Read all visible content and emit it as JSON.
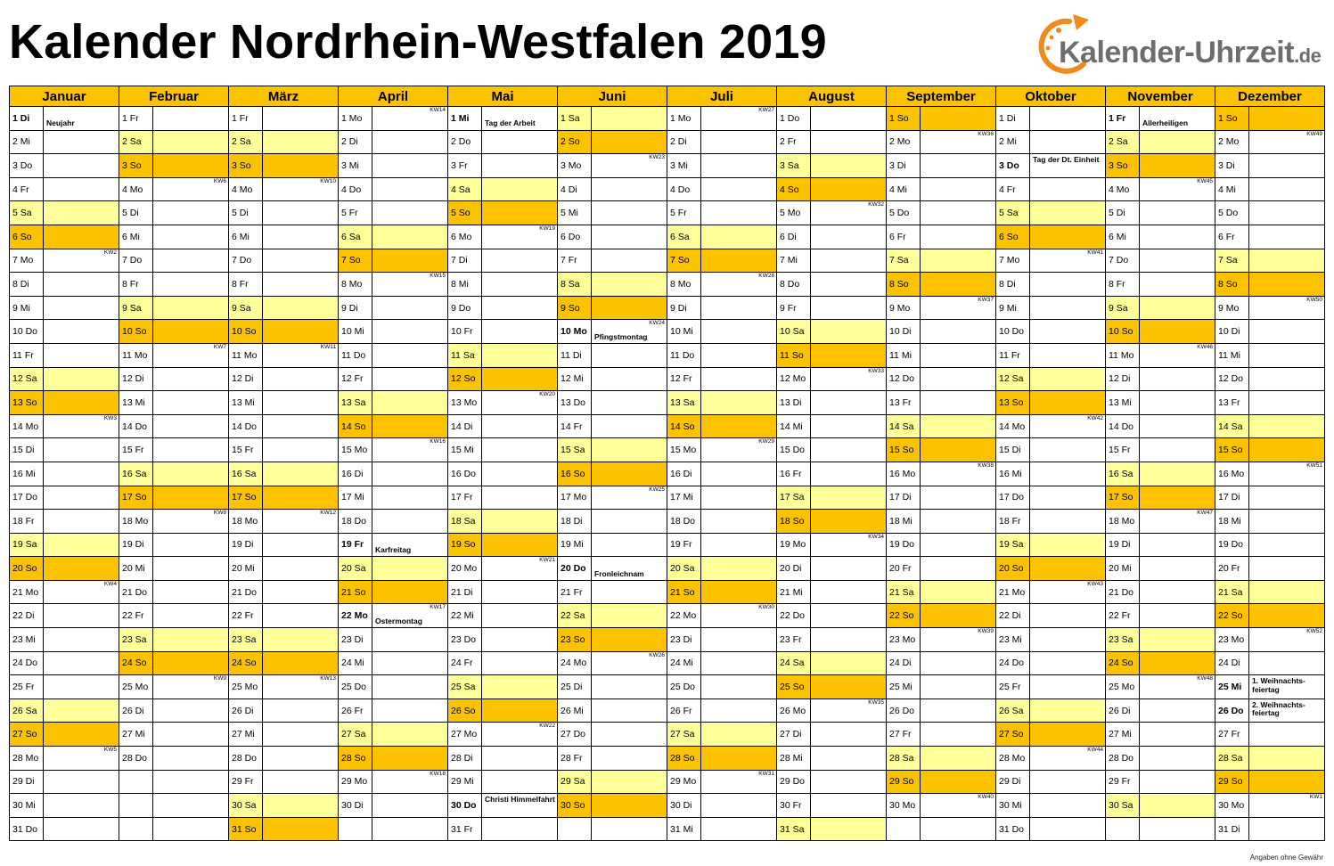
{
  "title": "Kalender Nordrhein-Westfalen 2019",
  "logo": {
    "name": "Kalender-Uhrzeit",
    "tld": ".de",
    "icon": "clock-arrow-icon",
    "accent": "#f08a1c",
    "text_color": "#6d6d6d"
  },
  "footer": "Angaben ohne Gewähr",
  "colors": {
    "header": "#fbc200",
    "saturday": "#ffff99",
    "sunday": "#fbc200"
  },
  "months": [
    {
      "name": "Januar",
      "days": [
        "1 Di",
        "2 Mi",
        "3 Do",
        "4 Fr",
        "5 Sa",
        "6 So",
        "7 Mo",
        "8 Di",
        "9 Mi",
        "10 Do",
        "11 Fr",
        "12 Sa",
        "13 So",
        "14 Mo",
        "15 Di",
        "16 Mi",
        "17 Do",
        "18 Fr",
        "19 Sa",
        "20 So",
        "21 Mo",
        "22 Di",
        "23 Mi",
        "24 Do",
        "25 Fr",
        "26 Sa",
        "27 So",
        "28 Mo",
        "29 Di",
        "30 Mi",
        "31 Do"
      ],
      "kw": {
        "7": "KW2",
        "14": "KW3",
        "21": "KW4",
        "28": "KW5"
      },
      "holidays": {
        "1": "Neujahr"
      }
    },
    {
      "name": "Februar",
      "days": [
        "1 Fr",
        "2 Sa",
        "3 So",
        "4 Mo",
        "5 Di",
        "6 Mi",
        "7 Do",
        "8 Fr",
        "9 Sa",
        "10 So",
        "11 Mo",
        "12 Di",
        "13 Mi",
        "14 Do",
        "15 Fr",
        "16 Sa",
        "17 So",
        "18 Mo",
        "19 Di",
        "20 Mi",
        "21 Do",
        "22 Fr",
        "23 Sa",
        "24 So",
        "25 Mo",
        "26 Di",
        "27 Mi",
        "28 Do"
      ],
      "kw": {
        "4": "KW6",
        "11": "KW7",
        "18": "KW8",
        "25": "KW9"
      },
      "holidays": {}
    },
    {
      "name": "März",
      "days": [
        "1 Fr",
        "2 Sa",
        "3 So",
        "4 Mo",
        "5 Di",
        "6 Mi",
        "7 Do",
        "8 Fr",
        "9 Sa",
        "10 So",
        "11 Mo",
        "12 Di",
        "13 Mi",
        "14 Do",
        "15 Fr",
        "16 Sa",
        "17 So",
        "18 Mo",
        "19 Di",
        "20 Mi",
        "21 Do",
        "22 Fr",
        "23 Sa",
        "24 So",
        "25 Mo",
        "26 Di",
        "27 Mi",
        "28 Do",
        "29 Fr",
        "30 Sa",
        "31 So"
      ],
      "kw": {
        "4": "KW10",
        "11": "KW11",
        "18": "KW12",
        "25": "KW13"
      },
      "holidays": {}
    },
    {
      "name": "April",
      "days": [
        "1 Mo",
        "2 Di",
        "3 Mi",
        "4 Do",
        "5 Fr",
        "6 Sa",
        "7 So",
        "8 Mo",
        "9 Di",
        "10 Mi",
        "11 Do",
        "12 Fr",
        "13 Sa",
        "14 So",
        "15 Mo",
        "16 Di",
        "17 Mi",
        "18 Do",
        "19 Fr",
        "20 Sa",
        "21 So",
        "22 Mo",
        "23 Di",
        "24 Mi",
        "25 Do",
        "26 Fr",
        "27 Sa",
        "28 So",
        "29 Mo",
        "30 Di"
      ],
      "kw": {
        "1": "KW14",
        "8": "KW15",
        "15": "KW16",
        "22": "KW17",
        "29": "KW18"
      },
      "holidays": {
        "19": "Karfreitag",
        "22": "Ostermontag"
      }
    },
    {
      "name": "Mai",
      "days": [
        "1 Mi",
        "2 Do",
        "3 Fr",
        "4 Sa",
        "5 So",
        "6 Mo",
        "7 Di",
        "8 Mi",
        "9 Do",
        "10 Fr",
        "11 Sa",
        "12 So",
        "13 Mo",
        "14 Di",
        "15 Mi",
        "16 Do",
        "17 Fr",
        "18 Sa",
        "19 So",
        "20 Mo",
        "21 Di",
        "22 Mi",
        "23 Do",
        "24 Fr",
        "25 Sa",
        "26 So",
        "27 Mo",
        "28 Di",
        "29 Mi",
        "30 Do",
        "31 Fr"
      ],
      "kw": {
        "6": "KW19",
        "13": "KW20",
        "20": "KW21",
        "27": "KW22"
      },
      "holidays": {
        "1": "Tag der Arbeit",
        "30": "Christi Himmelfahrt"
      }
    },
    {
      "name": "Juni",
      "days": [
        "1 Sa",
        "2 So",
        "3 Mo",
        "4 Di",
        "5 Mi",
        "6 Do",
        "7 Fr",
        "8 Sa",
        "9 So",
        "10 Mo",
        "11 Di",
        "12 Mi",
        "13 Do",
        "14 Fr",
        "15 Sa",
        "16 So",
        "17 Mo",
        "18 Di",
        "19 Mi",
        "20 Do",
        "21 Fr",
        "22 Sa",
        "23 So",
        "24 Mo",
        "25 Di",
        "26 Mi",
        "27 Do",
        "28 Fr",
        "29 Sa",
        "30 So"
      ],
      "kw": {
        "3": "KW23",
        "10": "KW24",
        "17": "KW25",
        "24": "KW26"
      },
      "holidays": {
        "10": "Pfingstmontag",
        "20": "Fronleichnam"
      }
    },
    {
      "name": "Juli",
      "days": [
        "1 Mo",
        "2 Di",
        "3 Mi",
        "4 Do",
        "5 Fr",
        "6 Sa",
        "7 So",
        "8 Mo",
        "9 Di",
        "10 Mi",
        "11 Do",
        "12 Fr",
        "13 Sa",
        "14 So",
        "15 Mo",
        "16 Di",
        "17 Mi",
        "18 Do",
        "19 Fr",
        "20 Sa",
        "21 So",
        "22 Mo",
        "23 Di",
        "24 Mi",
        "25 Do",
        "26 Fr",
        "27 Sa",
        "28 So",
        "29 Mo",
        "30 Di",
        "31 Mi"
      ],
      "kw": {
        "1": "KW27",
        "8": "KW28",
        "15": "KW29",
        "22": "KW30",
        "29": "KW31"
      },
      "holidays": {}
    },
    {
      "name": "August",
      "days": [
        "1 Do",
        "2 Fr",
        "3 Sa",
        "4 So",
        "5 Mo",
        "6 Di",
        "7 Mi",
        "8 Do",
        "9 Fr",
        "10 Sa",
        "11 So",
        "12 Mo",
        "13 Di",
        "14 Mi",
        "15 Do",
        "16 Fr",
        "17 Sa",
        "18 So",
        "19 Mo",
        "20 Di",
        "21 Mi",
        "22 Do",
        "23 Fr",
        "24 Sa",
        "25 So",
        "26 Mo",
        "27 Di",
        "28 Mi",
        "29 Do",
        "30 Fr",
        "31 Sa"
      ],
      "kw": {
        "5": "KW32",
        "12": "KW33",
        "19": "KW34",
        "26": "KW35"
      },
      "holidays": {}
    },
    {
      "name": "September",
      "days": [
        "1 So",
        "2 Mo",
        "3 Di",
        "4 Mi",
        "5 Do",
        "6 Fr",
        "7 Sa",
        "8 So",
        "9 Mo",
        "10 Di",
        "11 Mi",
        "12 Do",
        "13 Fr",
        "14 Sa",
        "15 So",
        "16 Mo",
        "17 Di",
        "18 Mi",
        "19 Do",
        "20 Fr",
        "21 Sa",
        "22 So",
        "23 Mo",
        "24 Di",
        "25 Mi",
        "26 Do",
        "27 Fr",
        "28 Sa",
        "29 So",
        "30 Mo"
      ],
      "kw": {
        "2": "KW36",
        "9": "KW37",
        "16": "KW38",
        "23": "KW39",
        "30": "KW40"
      },
      "holidays": {}
    },
    {
      "name": "Oktober",
      "days": [
        "1 Di",
        "2 Mi",
        "3 Do",
        "4 Fr",
        "5 Sa",
        "6 So",
        "7 Mo",
        "8 Di",
        "9 Mi",
        "10 Do",
        "11 Fr",
        "12 Sa",
        "13 So",
        "14 Mo",
        "15 Di",
        "16 Mi",
        "17 Do",
        "18 Fr",
        "19 Sa",
        "20 So",
        "21 Mo",
        "22 Di",
        "23 Mi",
        "24 Do",
        "25 Fr",
        "26 Sa",
        "27 So",
        "28 Mo",
        "29 Di",
        "30 Mi",
        "31 Do"
      ],
      "kw": {
        "7": "KW41",
        "14": "KW42",
        "21": "KW43",
        "28": "KW44"
      },
      "holidays": {
        "3": "Tag der Dt. Einheit"
      }
    },
    {
      "name": "November",
      "days": [
        "1 Fr",
        "2 Sa",
        "3 So",
        "4 Mo",
        "5 Di",
        "6 Mi",
        "7 Do",
        "8 Fr",
        "9 Sa",
        "10 So",
        "11 Mo",
        "12 Di",
        "13 Mi",
        "14 Do",
        "15 Fr",
        "16 Sa",
        "17 So",
        "18 Mo",
        "19 Di",
        "20 Mi",
        "21 Do",
        "22 Fr",
        "23 Sa",
        "24 So",
        "25 Mo",
        "26 Di",
        "27 Mi",
        "28 Do",
        "29 Fr",
        "30 Sa"
      ],
      "kw": {
        "4": "KW45",
        "11": "KW46",
        "18": "KW47",
        "25": "KW48"
      },
      "holidays": {
        "1": "Allerheiligen"
      }
    },
    {
      "name": "Dezember",
      "days": [
        "1 So",
        "2 Mo",
        "3 Di",
        "4 Mi",
        "5 Do",
        "6 Fr",
        "7 Sa",
        "8 So",
        "9 Mo",
        "10 Di",
        "11 Mi",
        "12 Do",
        "13 Fr",
        "14 Sa",
        "15 So",
        "16 Mo",
        "17 Di",
        "18 Mi",
        "19 Do",
        "20 Fr",
        "21 Sa",
        "22 So",
        "23 Mo",
        "24 Di",
        "25 Mi",
        "26 Do",
        "27 Fr",
        "28 Sa",
        "29 So",
        "30 Mo",
        "31 Di"
      ],
      "kw": {
        "2": "KW49",
        "9": "KW50",
        "16": "KW51",
        "23": "KW52",
        "30": "KW1"
      },
      "holidays": {
        "25": "1. Weihnachts-feiertag",
        "26": "2. Weihnachts-feiertag"
      }
    }
  ]
}
